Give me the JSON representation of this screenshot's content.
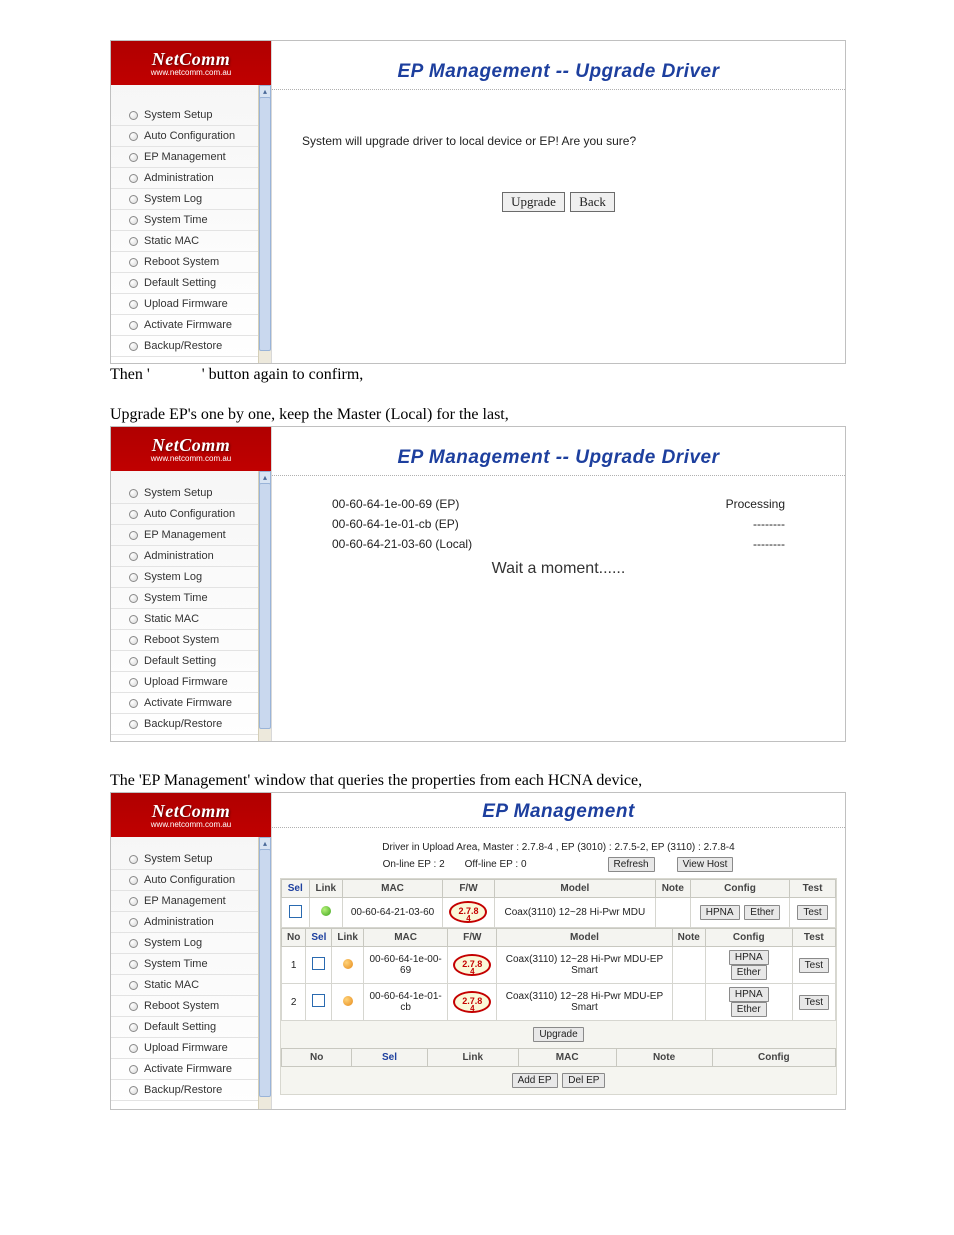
{
  "logo": {
    "brand": "NetComm",
    "url": "www.netcomm.com.au"
  },
  "menu_items": [
    "System Setup",
    "Auto Configuration",
    "EP Management",
    "Administration",
    "System Log",
    "System Time",
    "Static MAC",
    "Reboot System",
    "Default Setting",
    "Upload Firmware",
    "Activate Firmware",
    "Backup/Restore"
  ],
  "screen1": {
    "title": "EP Management -- Upgrade Driver",
    "message": "System will upgrade driver to local device or EP! Are you sure?",
    "btn_upgrade": "Upgrade",
    "btn_back": "Back"
  },
  "caption1_a": "Then '",
  "caption1_b": "' button again to confirm,",
  "caption2": "Upgrade EP's one by one, keep the Master (Local) for the last,",
  "screen2": {
    "title": "EP Management -- Upgrade Driver",
    "rows": [
      {
        "mac": "00-60-64-1e-00-69 (EP)",
        "status": "Processing"
      },
      {
        "mac": "00-60-64-1e-01-cb (EP)",
        "status": "--------"
      },
      {
        "mac": "00-60-64-21-03-60 (Local)",
        "status": "--------"
      }
    ],
    "wait": "Wait a moment......"
  },
  "caption3": "The 'EP Management' window that queries the properties from each HCNA device,",
  "screen3": {
    "title": "EP Management",
    "driver_line": "Driver in Upload Area, Master : 2.7.8-4 ,   EP (3010) : 2.7.5-2,   EP (3110) : 2.7.8-4",
    "online": "On-line EP : 2",
    "offline": "Off-line EP : 0",
    "btn_refresh": "Refresh",
    "btn_viewhost": "View Host",
    "head1": [
      "Sel",
      "Link",
      "MAC",
      "F/W",
      "Model",
      "Note",
      "Config",
      "Test"
    ],
    "row_master": {
      "mac": "00-60-64-21-03-60",
      "fw": "2.7.8-4",
      "model": "Coax(3110) 12~28 Hi-Pwr MDU",
      "hpna": "HPNA",
      "ether": "Ether",
      "test": "Test"
    },
    "head2": [
      "No",
      "Sel",
      "Link",
      "MAC",
      "F/W",
      "Model",
      "Note",
      "Config",
      "Test"
    ],
    "rows_ep": [
      {
        "no": "1",
        "mac": "00-60-64-1e-00-69",
        "fw": "2.7.8-4",
        "model": "Coax(3110) 12~28 Hi-Pwr MDU-EP Smart",
        "hpna": "HPNA",
        "ether": "Ether",
        "test": "Test"
      },
      {
        "no": "2",
        "mac": "00-60-64-1e-01-cb",
        "fw": "2.7.8-4",
        "model": "Coax(3110) 12~28 Hi-Pwr MDU-EP Smart",
        "hpna": "HPNA",
        "ether": "Ether",
        "test": "Test"
      }
    ],
    "btn_upgrade": "Upgrade",
    "head3": [
      "No",
      "Sel",
      "Link",
      "MAC",
      "Note",
      "Config"
    ],
    "btn_addep": "Add EP",
    "btn_delep": "Del EP"
  }
}
